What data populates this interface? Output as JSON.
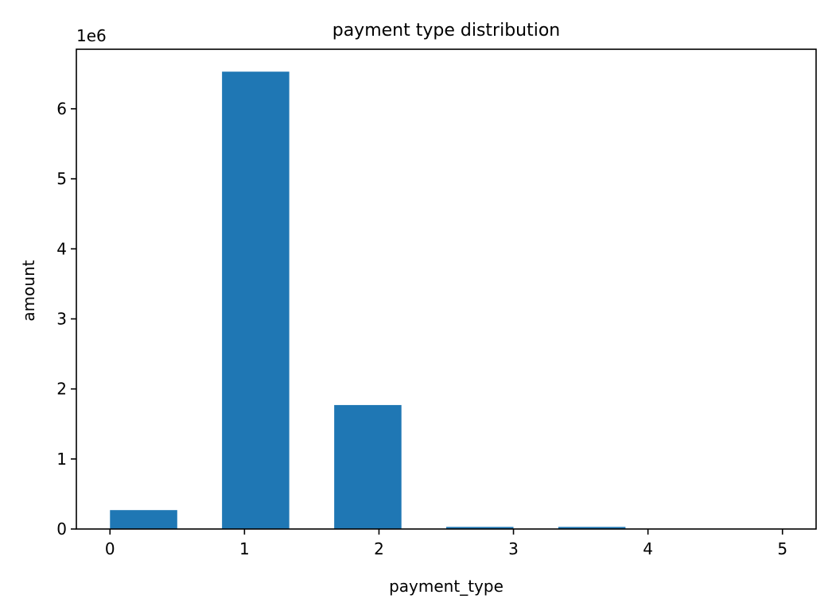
{
  "chart_data": {
    "type": "bar",
    "title": "payment type distribution",
    "xlabel": "payment_type",
    "ylabel": "amount",
    "y_offset_label": "1e6",
    "bar_color": "#1f77b4",
    "xlim": [
      -0.25,
      5.25
    ],
    "ylim": [
      0,
      6.85
    ],
    "x_ticks": [
      0,
      1,
      2,
      3,
      4,
      5
    ],
    "y_ticks": [
      0,
      1,
      2,
      3,
      4,
      5,
      6
    ],
    "bar_width": 0.5,
    "bars": [
      {
        "x_start": 0.0,
        "value": 0.27
      },
      {
        "x_start": 0.833,
        "value": 6.53
      },
      {
        "x_start": 1.667,
        "value": 1.77
      },
      {
        "x_start": 2.5,
        "value": 0.03
      },
      {
        "x_start": 3.333,
        "value": 0.03
      },
      {
        "x_start": 4.167,
        "value": 0.0
      }
    ],
    "grid": false,
    "legend": "none"
  }
}
